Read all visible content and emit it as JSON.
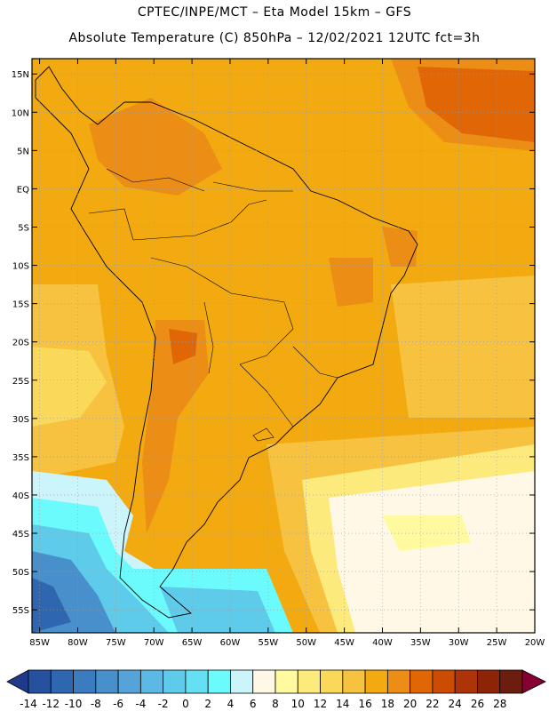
{
  "title": {
    "line1": "CPTEC/INPE/MCT –  Eta Model 15km – GFS",
    "line2": "Absolute Temperature (C) 850hPa – 12/02/2021 12UTC fct=3h"
  },
  "map": {
    "lon_labels": [
      "85W",
      "80W",
      "75W",
      "70W",
      "65W",
      "60W",
      "55W",
      "50W",
      "45W",
      "40W",
      "35W",
      "30W",
      "25W",
      "20W"
    ],
    "lat_labels": [
      "15N",
      "10N",
      "5N",
      "EQ",
      "5S",
      "10S",
      "15S",
      "20S",
      "25S",
      "30S",
      "35S",
      "40S",
      "45S",
      "50S",
      "55S"
    ],
    "lon_range": [
      -86,
      -20
    ],
    "lat_range": [
      -58,
      17
    ],
    "grid": true
  },
  "colorbar": {
    "labels": [
      "-14",
      "-12",
      "-10",
      "-8",
      "-6",
      "-4",
      "-2",
      "0",
      "2",
      "4",
      "6",
      "8",
      "10",
      "12",
      "14",
      "16",
      "18",
      "20",
      "22",
      "24",
      "26",
      "28"
    ],
    "colors": [
      "#1f3a8a",
      "#26519e",
      "#2f66b0",
      "#3b7bbf",
      "#4890cc",
      "#55a3d9",
      "#5cb8e4",
      "#5fcbeb",
      "#64e0f2",
      "#6cfbfd",
      "#ccf5fb",
      "#fff8e6",
      "#fffaa0",
      "#fcea7d",
      "#f9d85a",
      "#f6c240",
      "#f2aa10",
      "#ec8d16",
      "#e06606",
      "#cc4c04",
      "#ad3408",
      "#8d2405",
      "#6b1d10",
      "#850031"
    ]
  }
}
